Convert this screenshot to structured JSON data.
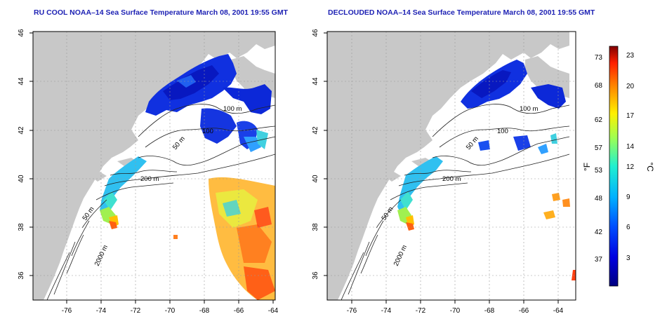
{
  "panels": [
    {
      "title": "RU COOL NOAA–14 Sea Surface Temperature March 08, 2001 19:55 GMT",
      "x_ticks": [
        "-76",
        "-74",
        "-72",
        "-70",
        "-68",
        "-66",
        "-64"
      ],
      "y_ticks": [
        "46",
        "44",
        "42",
        "40",
        "38",
        "36"
      ],
      "contour_labels": [
        "100 m",
        "100",
        "50 m",
        "200 m",
        "50 m",
        "2000 m"
      ]
    },
    {
      "title": "DECLOUDED NOAA–14 Sea Surface Temperature March 08, 2001 19:55 GMT",
      "x_ticks": [
        "-76",
        "-74",
        "-72",
        "-70",
        "-68",
        "-66",
        "-64"
      ],
      "y_ticks": [
        "46",
        "44",
        "42",
        "40",
        "38",
        "36"
      ],
      "contour_labels": [
        "100 m",
        "100",
        "50 m",
        "200 m",
        "50 m",
        "2000 m"
      ]
    }
  ],
  "colorbar": {
    "f_label": "°F",
    "c_label": "°C",
    "f_ticks": [
      "73",
      "68",
      "62",
      "57",
      "53",
      "48",
      "42",
      "37"
    ],
    "c_ticks": [
      "23",
      "20",
      "17",
      "14",
      "12",
      "9",
      "6",
      "3"
    ]
  },
  "colors": {
    "land": "#c8c8c8",
    "water": "#ffffff",
    "frame": "#000000",
    "title": "#1e22b4"
  }
}
